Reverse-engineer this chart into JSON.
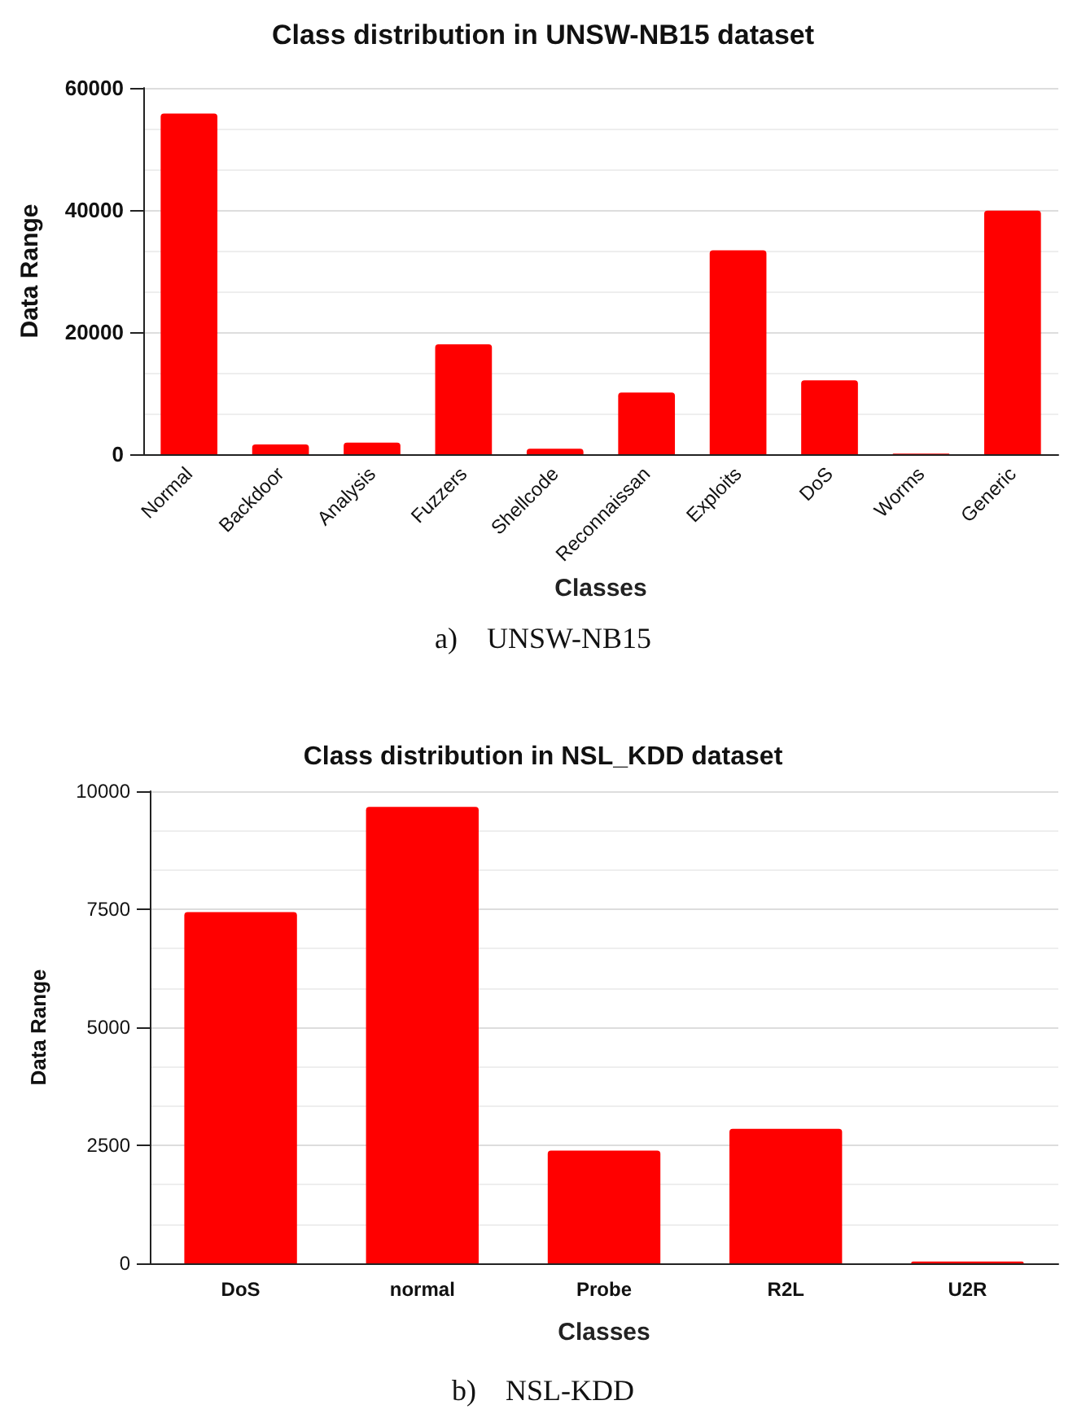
{
  "chart_data": [
    {
      "type": "bar",
      "title": "Class distribution in UNSW-NB15 dataset",
      "xlabel": "Classes",
      "ylabel": "Data Range",
      "categories": [
        "Normal",
        "Backdoor",
        "Analysis",
        "Fuzzers",
        "Shellcode",
        "Reconnaissan",
        "Exploits",
        "DoS",
        "Worms",
        "Generic"
      ],
      "values": [
        55800,
        1600,
        1900,
        18000,
        900,
        10100,
        33400,
        12100,
        100,
        39900
      ],
      "color": "#ff0000",
      "ylim": [
        0,
        60000
      ],
      "yticks": [
        0,
        20000,
        40000,
        60000
      ],
      "grid": "y",
      "annotations": [
        "a)    UNSW-NB15"
      ]
    },
    {
      "type": "bar",
      "title": "Class distribution in NSL_KDD dataset",
      "xlabel": "Classes",
      "ylabel": "Data Range",
      "categories": [
        "DoS",
        "normal",
        "Probe",
        "R2L",
        "U2R"
      ],
      "values": [
        7440,
        9670,
        2390,
        2850,
        40
      ],
      "color": "#ff0000",
      "ylim": [
        0,
        10000
      ],
      "yticks": [
        0,
        2500,
        5000,
        7500,
        10000
      ],
      "grid": "y",
      "annotations": [
        "b)    NSL-KDD"
      ]
    }
  ]
}
